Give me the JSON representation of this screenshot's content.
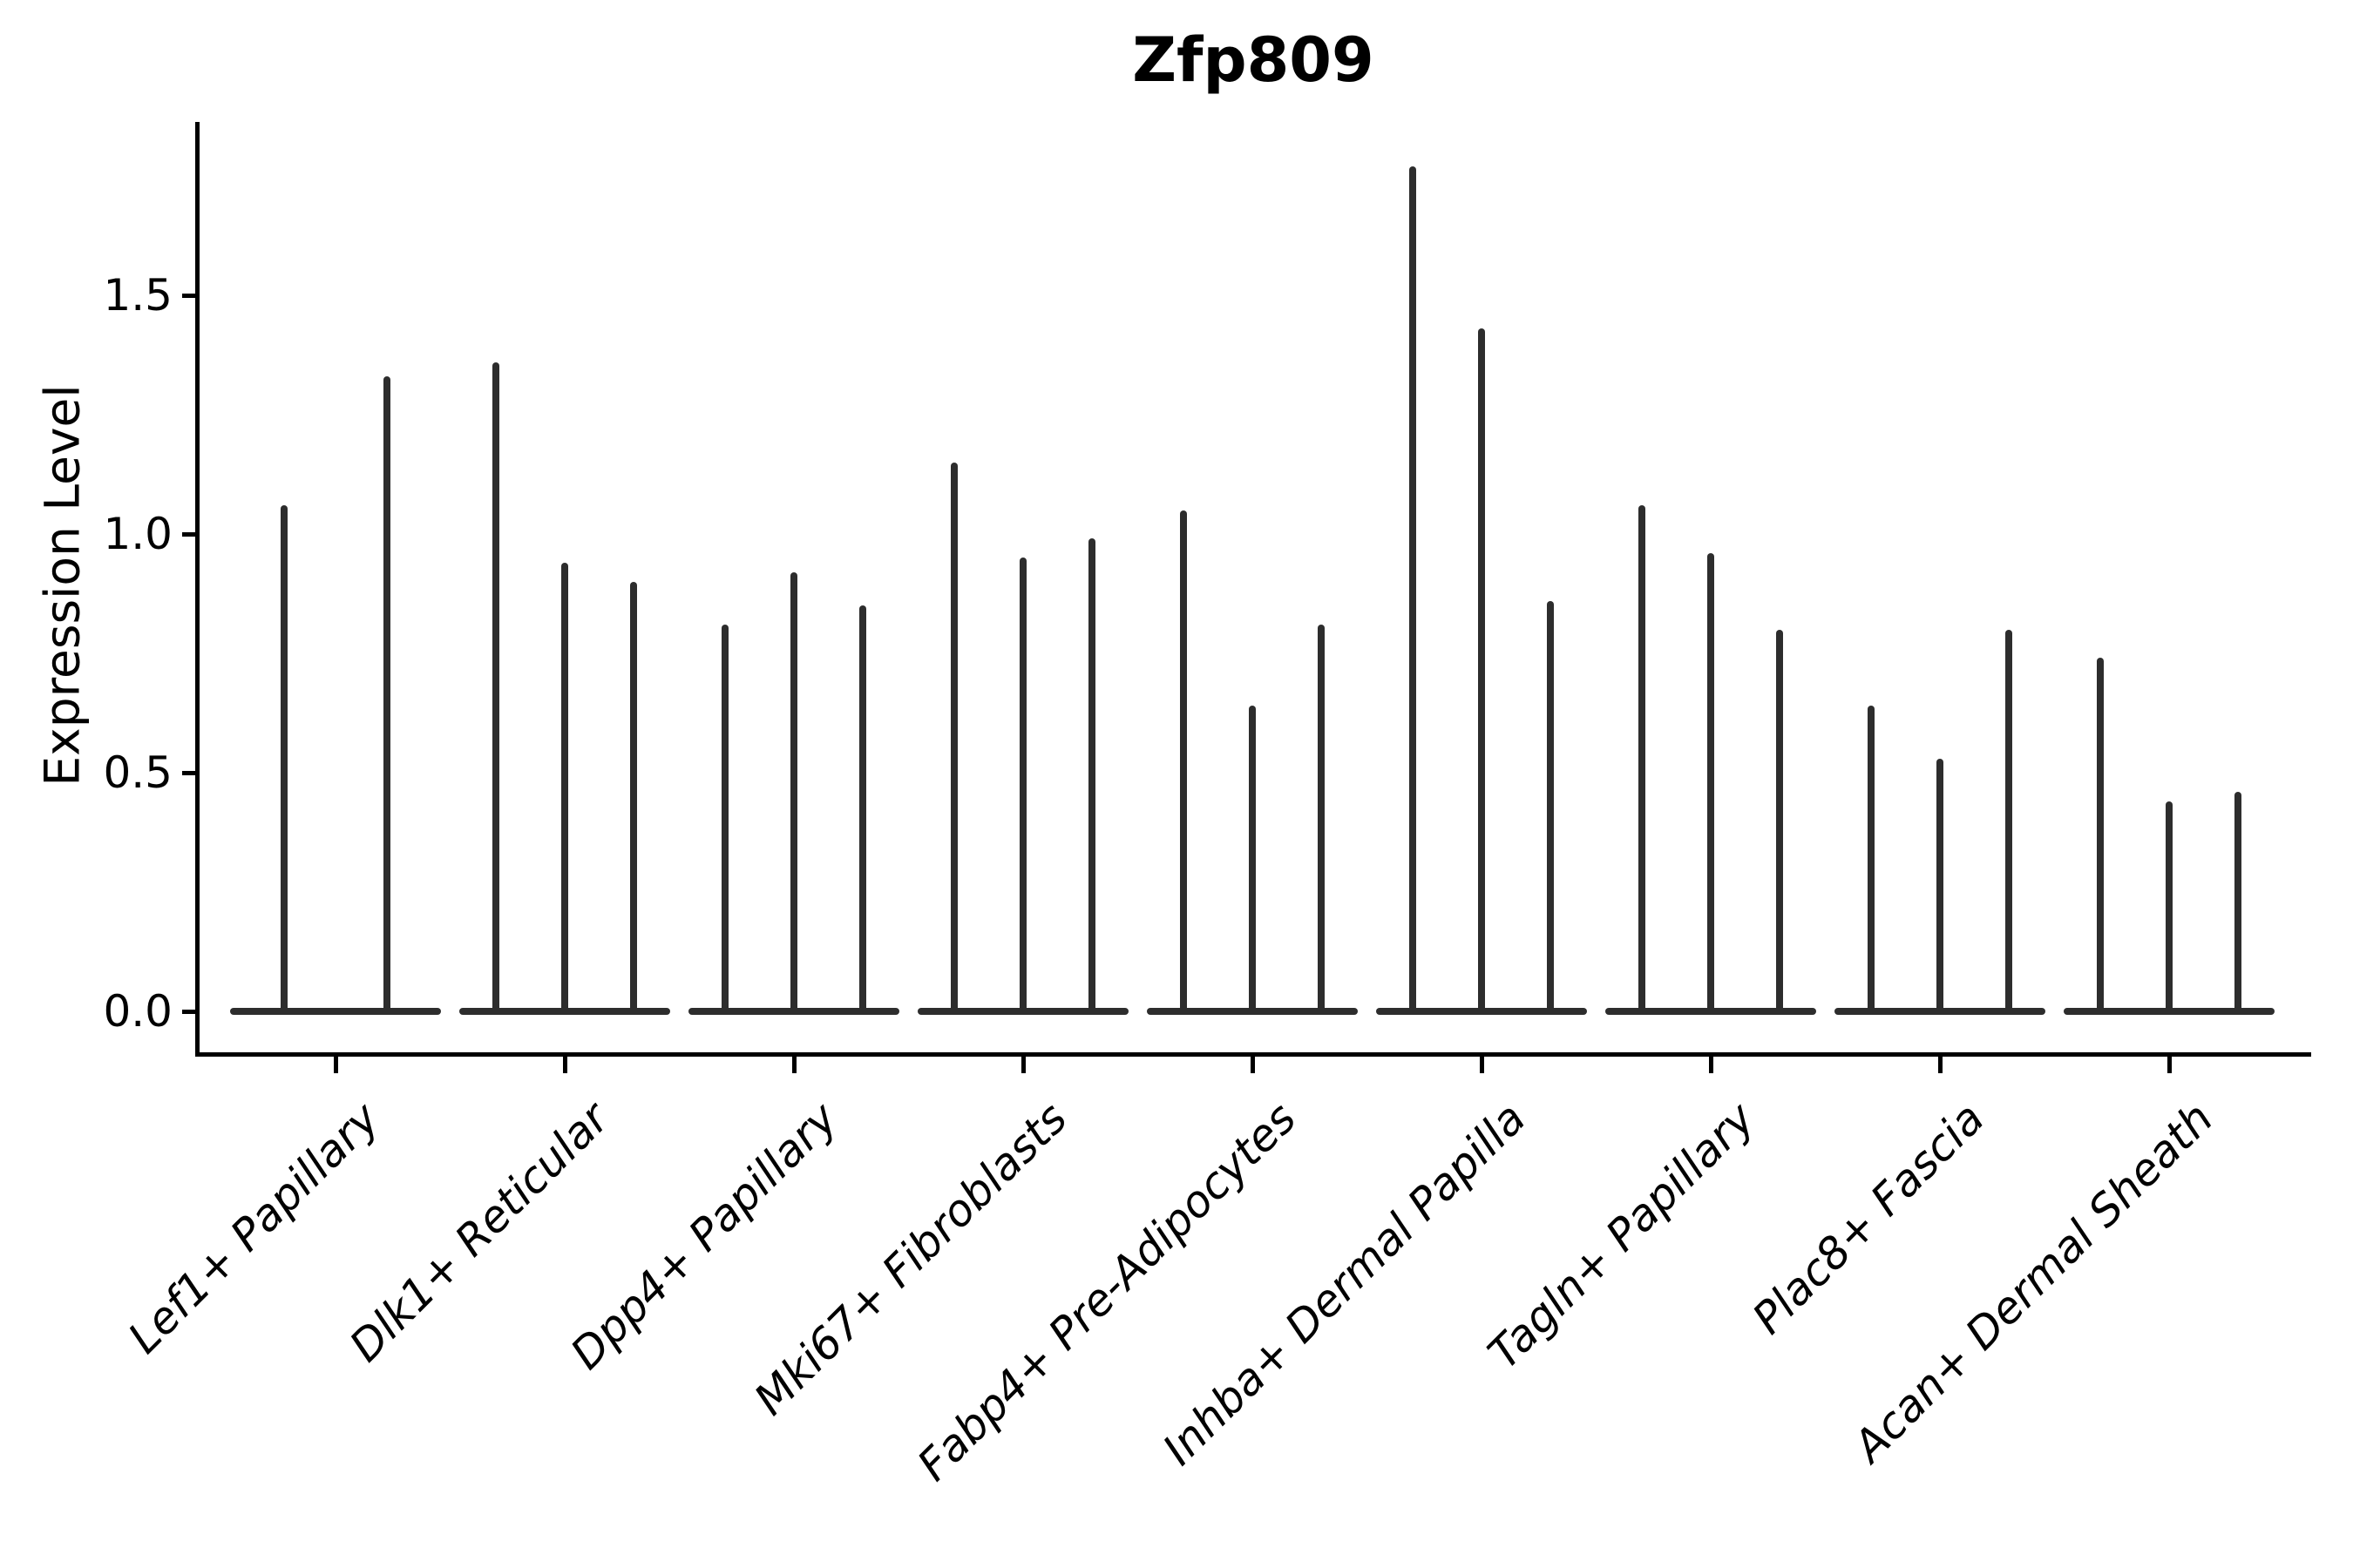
{
  "chart_data": {
    "type": "violin",
    "title": "Zfp809",
    "xlabel": "",
    "ylabel": "Expression Level",
    "yticks": [
      "0.0",
      "0.5",
      "1.0",
      "1.5"
    ],
    "ytick_values": [
      0.0,
      0.5,
      1.0,
      1.5
    ],
    "ylim": [
      -0.09,
      1.86
    ],
    "grid": false,
    "legend_position": "none",
    "violin_color": "#2d2d2d",
    "axis_color": "#000000",
    "categories": [
      "Lef1+ Papillary",
      "Dlk1+ Reticular",
      "Dpp4+ Papillary",
      "Mki67+ Fibroblasts",
      "Fabp4+ Pre-Adipocytes",
      "Inhba+ Dermal Papilla",
      "Tagln+ Papillary",
      "Plac8+ Fascia",
      "Acan+ Dermal Sheath"
    ],
    "groups": [
      {
        "label": "Lef1+ Papillary",
        "violin_max_values": [
          1.06,
          1.33
        ]
      },
      {
        "label": "Dlk1+ Reticular",
        "violin_max_values": [
          1.36,
          0.94,
          0.9
        ]
      },
      {
        "label": "Dpp4+ Papillary",
        "violin_max_values": [
          0.81,
          0.92,
          0.85
        ]
      },
      {
        "label": "Mki67+ Fibroblasts",
        "violin_max_values": [
          1.15,
          0.95,
          0.99
        ]
      },
      {
        "label": "Fabp4+ Pre-Adipocytes",
        "violin_max_values": [
          1.05,
          0.64,
          0.81
        ]
      },
      {
        "label": "Inhba+ Dermal Papilla",
        "violin_max_values": [
          1.77,
          1.43,
          0.86
        ]
      },
      {
        "label": "Tagln+ Papillary",
        "violin_max_values": [
          1.06,
          0.96,
          0.8
        ]
      },
      {
        "label": "Plac8+ Fascia",
        "violin_max_values": [
          0.64,
          0.53,
          0.8
        ]
      },
      {
        "label": "Acan+ Dermal Sheath",
        "violin_max_values": [
          0.74,
          0.44,
          0.46
        ]
      }
    ]
  }
}
